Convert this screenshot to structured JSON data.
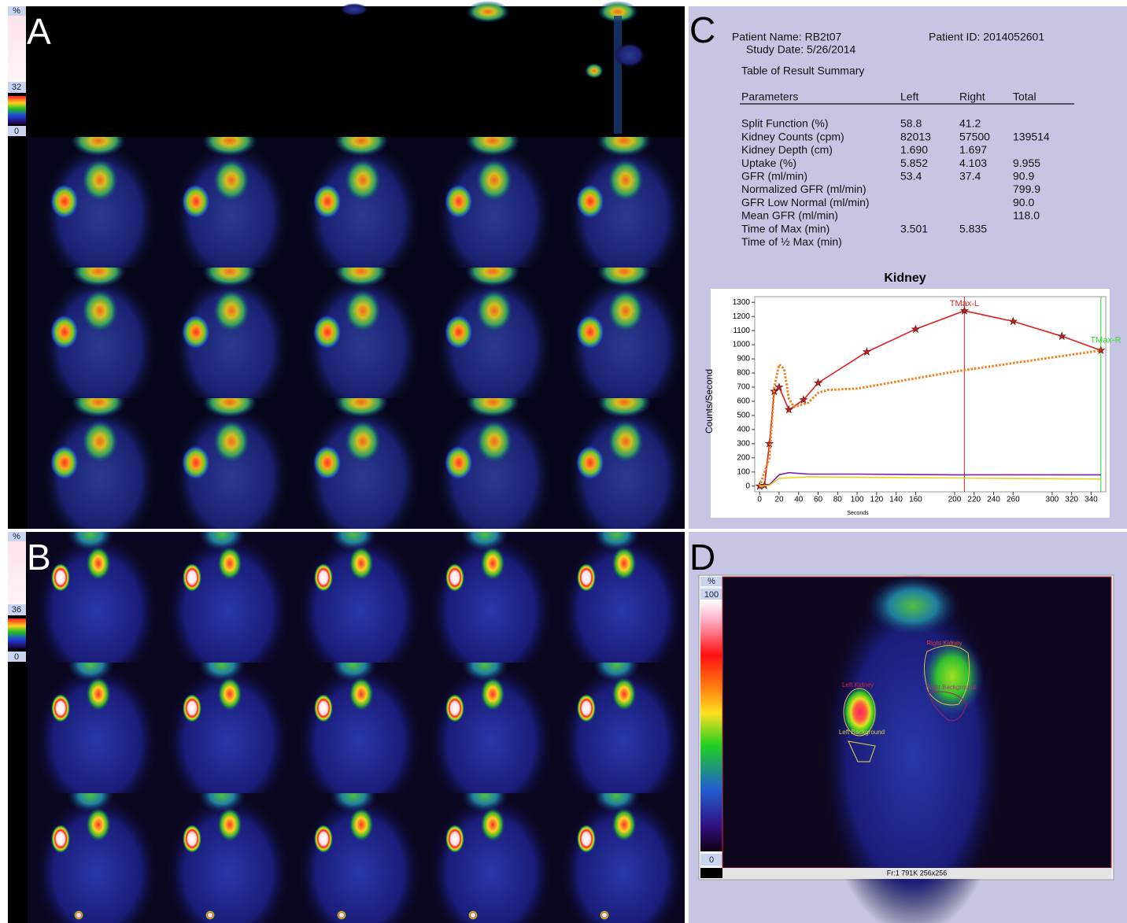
{
  "panel_a": {
    "label": "A",
    "scale": {
      "unit": "%",
      "max": 32,
      "min": 0
    }
  },
  "panel_b": {
    "label": "B",
    "scale": {
      "unit": "%",
      "max": 36,
      "min": 0
    }
  },
  "panel_c": {
    "label": "C",
    "patient_name": "Patient Name: RB2t07",
    "patient_id": "Patient ID: 2014052601",
    "study_date": "Study Date: 5/26/2014",
    "table_title": "Table of Result Summary",
    "table": {
      "header": [
        "Parameters",
        "Left",
        "Right",
        "Total"
      ],
      "rows": [
        {
          "name": "Split Function (%)",
          "left": "58.8",
          "right": "41.2"
        },
        {
          "name": "Kidney Counts (cpm)",
          "left": "82013",
          "right": "57500",
          "total": "139514"
        },
        {
          "name": "Kidney Depth (cm)",
          "left": "1.690",
          "right": "1.697"
        },
        {
          "name": "Uptake (%)",
          "left": "5.852",
          "right": "4.103",
          "total": "9.955"
        },
        {
          "name": "GFR (ml/min)",
          "left": "53.4",
          "right": "37.4",
          "total": "90.9"
        },
        {
          "name": "Normalized GFR (ml/min)",
          "total": "799.9"
        },
        {
          "name": "GFR Low Normal (ml/min)",
          "total": "90.0"
        },
        {
          "name": "Mean GFR (ml/min)",
          "total": "118.0"
        },
        {
          "name": "Time of Max (min)",
          "left": "3.501",
          "right": "5.835"
        },
        {
          "name": "Time of ½ Max (min)"
        }
      ]
    }
  },
  "chart_data": {
    "type": "line",
    "title": "Kidney",
    "x_label": "Seconds",
    "y_label": "Counts/Second",
    "xlim": [
      -5,
      355
    ],
    "ylim": [
      -40,
      1340
    ],
    "xticks": [
      0,
      20,
      40,
      60,
      80,
      100,
      120,
      140,
      160,
      200,
      220,
      240,
      260,
      300,
      320,
      340
    ],
    "yticks": [
      0,
      100,
      200,
      300,
      400,
      500,
      600,
      700,
      800,
      900,
      1000,
      1100,
      1200,
      1300
    ],
    "series": [
      {
        "color": "#dd2020",
        "style": "solid",
        "markers": true,
        "x": [
          0,
          5,
          10,
          15,
          20,
          30,
          45,
          60,
          110,
          160,
          210,
          260,
          310,
          350
        ],
        "values": [
          0,
          5,
          300,
          670,
          700,
          540,
          610,
          730,
          950,
          1110,
          1240,
          1165,
          1060,
          960
        ]
      },
      {
        "color": "#f08020",
        "style": "dotted",
        "markers": false,
        "x": [
          0,
          10,
          15,
          20,
          25,
          30,
          35,
          40,
          50,
          60,
          70,
          100,
          150,
          200,
          250,
          300,
          350
        ],
        "values": [
          0,
          200,
          700,
          860,
          830,
          620,
          560,
          570,
          590,
          660,
          680,
          690,
          750,
          810,
          860,
          910,
          960
        ]
      },
      {
        "color": "#8020a0",
        "style": "solid",
        "markers": false,
        "x": [
          0,
          10,
          20,
          30,
          50,
          100,
          200,
          300,
          350
        ],
        "values": [
          0,
          10,
          80,
          95,
          85,
          85,
          80,
          80,
          80
        ]
      },
      {
        "color": "#e8d020",
        "style": "solid",
        "markers": false,
        "x": [
          0,
          10,
          20,
          50,
          150,
          250,
          350
        ],
        "values": [
          0,
          5,
          55,
          65,
          60,
          55,
          50
        ]
      }
    ],
    "vlines": [
      {
        "x": 210,
        "color": "#cc2222"
      },
      {
        "x": 350,
        "color": "#33cc33"
      }
    ],
    "annotations": [
      {
        "text": "TMax-L",
        "x": 210,
        "y": 1290,
        "color": "#dd2020"
      },
      {
        "text": "TMax-R",
        "x": 355,
        "y": 1030,
        "color": "#33dd33"
      }
    ]
  },
  "panel_d": {
    "label": "D",
    "scale": {
      "unit": "%",
      "max": 100,
      "min": 0
    },
    "rois": {
      "right_kidney": "Right Kidney",
      "left_kidney": "Left Kidney",
      "left_background": "Left Background",
      "right_background": "Right Background"
    },
    "footer": "Fr:1 791K 256x256"
  }
}
